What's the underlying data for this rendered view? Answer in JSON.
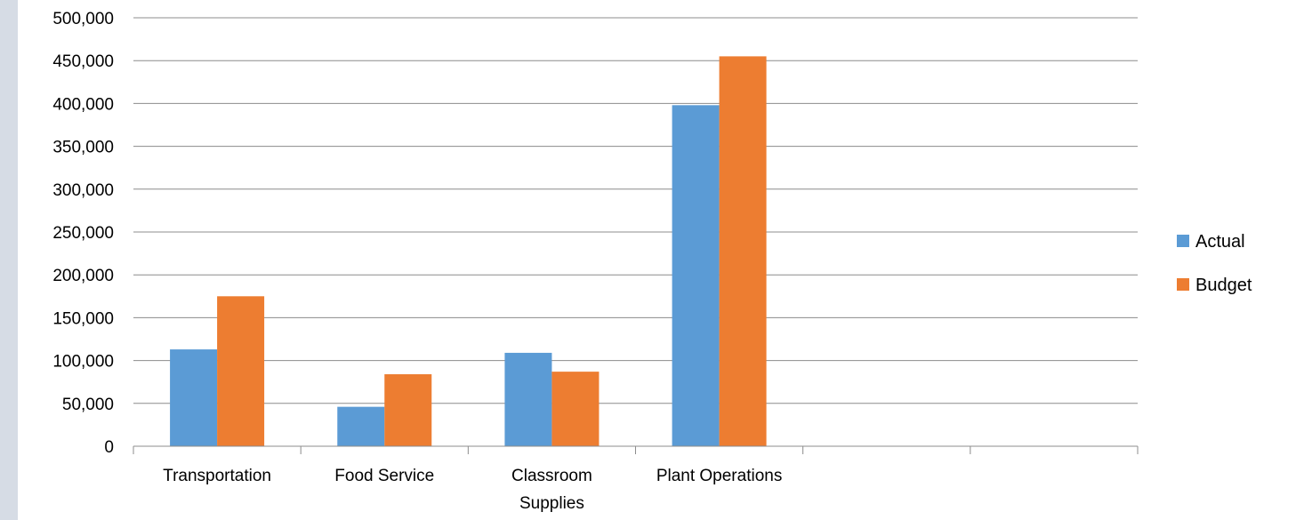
{
  "chart_data": {
    "type": "bar",
    "categories": [
      "Transportation",
      "Food Service",
      "Classroom Supplies",
      "Plant Operations",
      "",
      ""
    ],
    "category_lines": [
      [
        "Transportation"
      ],
      [
        "Food Service"
      ],
      [
        "Classroom",
        "Supplies"
      ],
      [
        "Plant Operations"
      ],
      [],
      []
    ],
    "series": [
      {
        "name": "Actual",
        "color": "#5b9bd5",
        "values": [
          113000,
          46000,
          109000,
          398000,
          null,
          null
        ]
      },
      {
        "name": "Budget",
        "color": "#ed7d31",
        "values": [
          175000,
          84000,
          87000,
          455000,
          null,
          null
        ]
      }
    ],
    "ylim": [
      0,
      500000
    ],
    "y_ticks": [
      0,
      50000,
      100000,
      150000,
      200000,
      250000,
      300000,
      350000,
      400000,
      450000,
      500000
    ],
    "y_tick_labels": [
      "0",
      "50,000",
      "100,000",
      "150,000",
      "200,000",
      "250,000",
      "300,000",
      "350,000",
      "400,000",
      "450,000",
      "500,000"
    ],
    "grid": true,
    "legend_position": "right",
    "title": "",
    "xlabel": "",
    "ylabel": ""
  }
}
